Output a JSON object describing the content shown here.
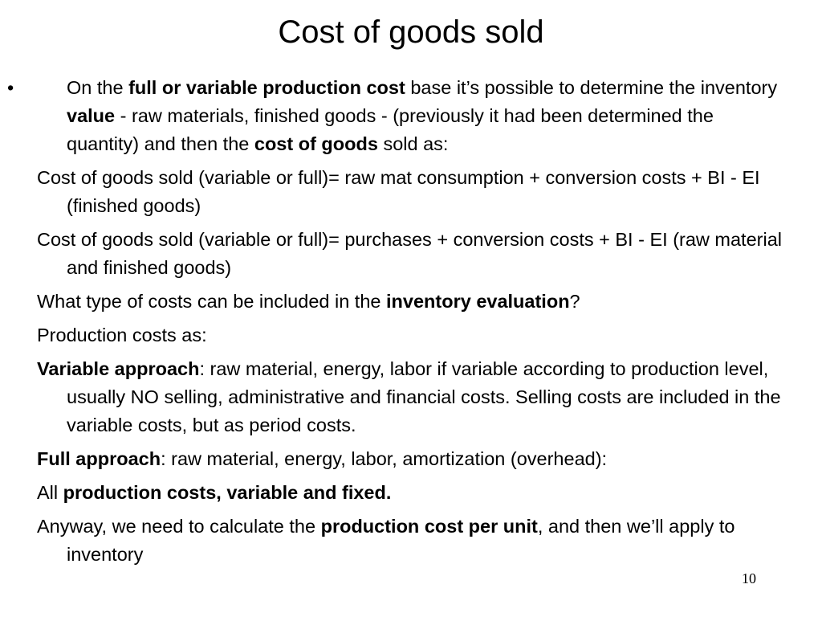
{
  "slide": {
    "title": "Cost of goods sold",
    "page_number": "10"
  },
  "bullet_char": "•",
  "paragraphs": [
    {
      "bullet": true,
      "runs": [
        {
          "text": "On the ",
          "bold": false
        },
        {
          "text": "full or variable production cost",
          "bold": true
        },
        {
          "text": " base it’s possible to determine the inventory ",
          "bold": false
        },
        {
          "text": "value",
          "bold": true
        },
        {
          "text": " - raw materials, finished goods - (previously it had been determined the quantity) and then the ",
          "bold": false
        },
        {
          "text": "cost of goods",
          "bold": true
        },
        {
          "text": " sold as:",
          "bold": false
        }
      ]
    },
    {
      "bullet": false,
      "runs": [
        {
          "text": " Cost of goods sold (variable or full)= raw mat consumption + conversion costs + BI - EI  (finished goods)",
          "bold": false
        }
      ]
    },
    {
      "bullet": false,
      "runs": [
        {
          "text": "Cost of goods sold (variable or full)= purchases + conversion costs + BI - EI  (raw material and finished goods)",
          "bold": false
        }
      ]
    },
    {
      "bullet": false,
      "runs": [
        {
          "text": " What type of costs can be included in the ",
          "bold": false
        },
        {
          "text": "inventory evaluation",
          "bold": true
        },
        {
          "text": "?",
          "bold": false
        }
      ]
    },
    {
      "bullet": false,
      "runs": [
        {
          "text": "Production costs as:",
          "bold": false
        }
      ]
    },
    {
      "bullet": false,
      "runs": [
        {
          "text": "Variable approach",
          "bold": true
        },
        {
          "text": ": raw material, energy, labor if variable according to production level, usually NO selling, administrative and financial costs. Selling costs are included in the variable costs, but as period costs.",
          "bold": false
        }
      ]
    },
    {
      "bullet": false,
      "runs": [
        {
          "text": "Full approach",
          "bold": true
        },
        {
          "text": ": raw material, energy, labor, amortization (overhead):",
          "bold": false
        }
      ]
    },
    {
      "bullet": false,
      "runs": [
        {
          "text": "All ",
          "bold": false
        },
        {
          "text": "production costs, variable and fixed.",
          "bold": true
        }
      ]
    },
    {
      "bullet": false,
      "runs": [
        {
          "text": "Anyway,  we need to calculate the ",
          "bold": false
        },
        {
          "text": "production cost per unit",
          "bold": true
        },
        {
          "text": ", and then we’ll apply to inventory",
          "bold": false
        }
      ]
    }
  ]
}
